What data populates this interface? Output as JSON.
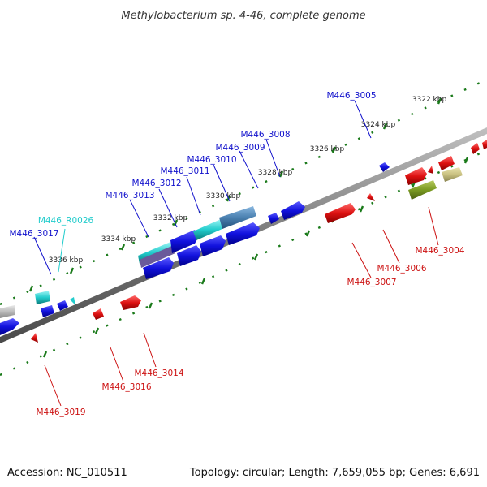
{
  "title": "Methylobacterium sp. 4-46, complete genome",
  "footer": {
    "accession": "Accession: NC_010511",
    "summary": "Topology: circular; Length: 7,659,055 bp; Genes: 6,691"
  },
  "colors": {
    "forward_gene": "#1111dd",
    "reverse_gene": "#dd1111",
    "rna": "#22cccc",
    "olive_feature": "#7a9a22",
    "tan_feature": "#c8c080",
    "tick": "#1a7a1a",
    "backbone": "#888888"
  },
  "scale_labels": [
    "3322 kbp",
    "3324 kbp",
    "3326 kbp",
    "3328 kbp",
    "3330 kbp",
    "3332 kbp",
    "3334 kbp",
    "3336 kbp"
  ],
  "gene_labels": {
    "M446_3005": "M446_3005",
    "M446_3008": "M446_3008",
    "M446_3009": "M446_3009",
    "M446_3010": "M446_3010",
    "M446_3011": "M446_3011",
    "M446_3012": "M446_3012",
    "M446_3013": "M446_3013",
    "M446_R0026": "M446_R0026",
    "M446_3017": "M446_3017",
    "M446_3004": "M446_3004",
    "M446_3006": "M446_3006",
    "M446_3007": "M446_3007",
    "M446_3014": "M446_3014",
    "M446_3016": "M446_3016",
    "M446_3019": "M446_3019"
  }
}
